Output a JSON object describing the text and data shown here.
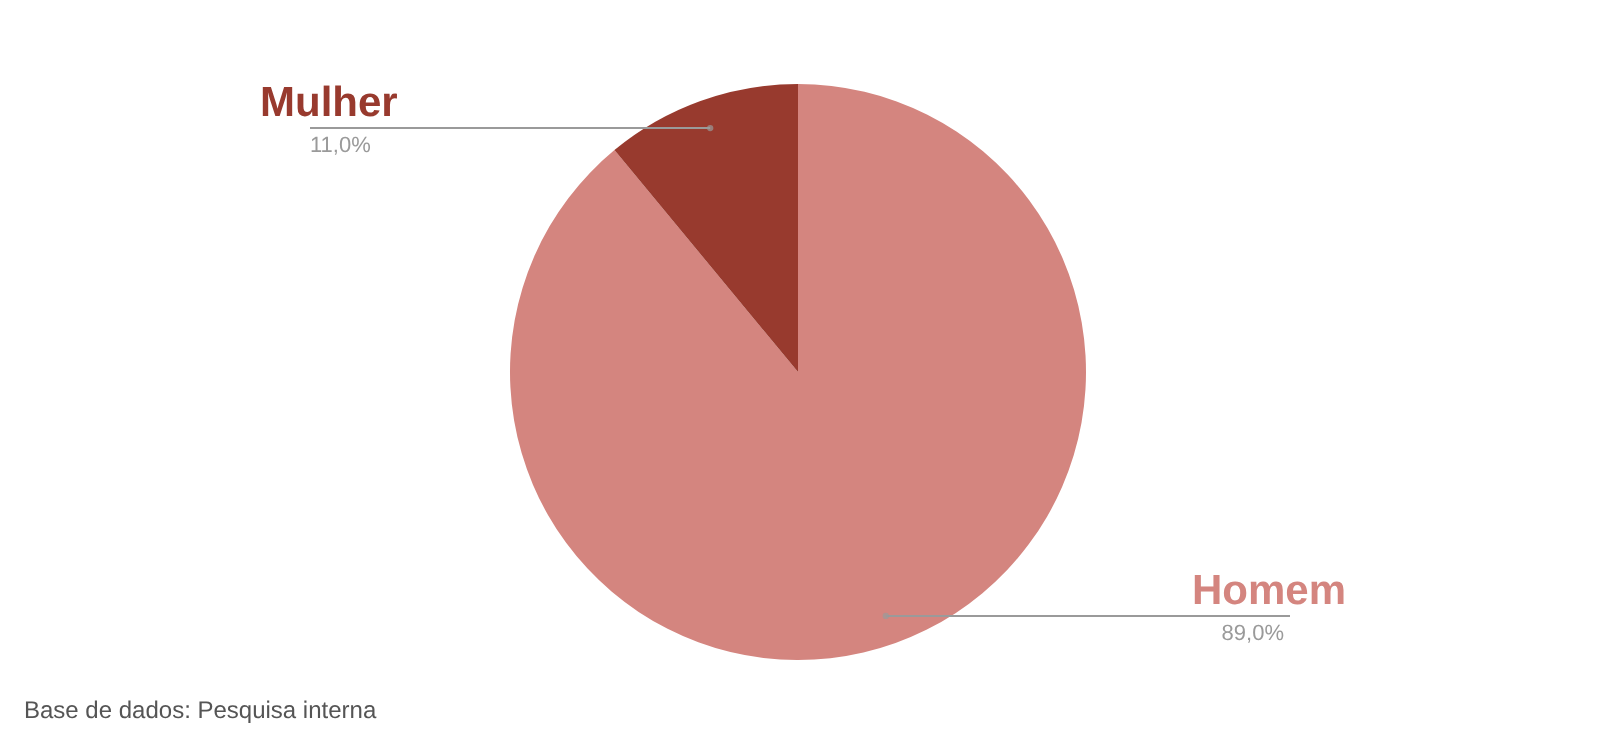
{
  "chart_data": {
    "type": "pie",
    "categories": [
      "Homem",
      "Mulher"
    ],
    "values": [
      89.0,
      11.0
    ],
    "colors": [
      "#d4857f",
      "#983a2e"
    ],
    "value_labels": [
      "89,0%",
      "11,0%"
    ],
    "annotations": [
      "Base de dados: Pesquisa interna"
    ]
  }
}
